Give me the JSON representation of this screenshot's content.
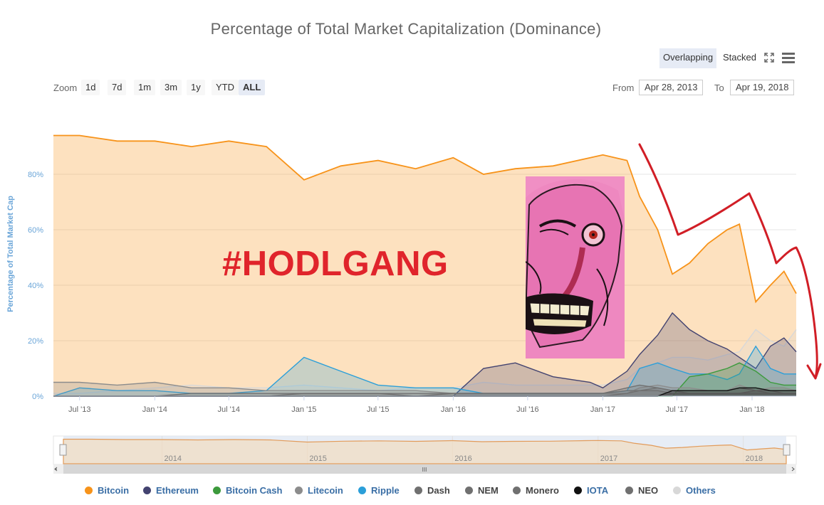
{
  "title": "Percentage of Total Market Capitalization (Dominance)",
  "controls": {
    "overlapping_label": "Overlapping",
    "stacked_label": "Stacked",
    "zoom_label": "Zoom",
    "zoom_options": [
      "1d",
      "7d",
      "1m",
      "3m",
      "1y",
      "YTD",
      "ALL"
    ],
    "zoom_active": "ALL",
    "from_label": "From",
    "from_value": "Apr 28, 2013",
    "to_label": "To",
    "to_value": "Apr 19, 2018"
  },
  "overlay": {
    "hashtag": "#HODLGANG"
  },
  "navigator": {
    "year_labels": [
      "2014",
      "2015",
      "2016",
      "2017",
      "2018"
    ],
    "scroll_handle": "III"
  },
  "colors": {
    "bitcoin": "#f7931a",
    "ethereum": "#434348",
    "bitcoin_cash": "#55a630",
    "litecoin": "#8c8c8c",
    "ripple": "#2b9fd9",
    "dash": "#6e6e6e",
    "iota": "#111111",
    "others": "#dddddd",
    "drawn_arrow": "#d11e26",
    "hashtag": "#e0242b",
    "axis_label": "#6aa5d8"
  },
  "chart_data": {
    "type": "area",
    "title": "Percentage of Total Market Capitalization (Dominance)",
    "ylabel": "Percentage of Total Market Cap",
    "ylim": [
      0,
      100
    ],
    "yticks": [
      "0%",
      "20%",
      "40%",
      "60%",
      "80%"
    ],
    "xticks": [
      "Jul '13",
      "Jan '14",
      "Jul '14",
      "Jan '15",
      "Jul '15",
      "Jan '16",
      "Jul '16",
      "Jan '17",
      "Jul '17",
      "Jan '18"
    ],
    "grid": true,
    "legend_position": "bottom",
    "x": [
      "2013-04-28",
      "2013-07-01",
      "2013-10-01",
      "2014-01-01",
      "2014-04-01",
      "2014-07-01",
      "2014-10-01",
      "2015-01-01",
      "2015-04-01",
      "2015-07-01",
      "2015-10-01",
      "2016-01-01",
      "2016-03-15",
      "2016-06-01",
      "2016-09-01",
      "2016-12-01",
      "2017-01-01",
      "2017-03-01",
      "2017-04-01",
      "2017-05-15",
      "2017-06-20",
      "2017-08-01",
      "2017-09-15",
      "2017-11-01",
      "2017-12-01",
      "2018-01-10",
      "2018-02-15",
      "2018-03-20",
      "2018-04-19"
    ],
    "series": [
      {
        "name": "Bitcoin",
        "values": [
          94,
          94,
          92,
          92,
          90,
          92,
          90,
          78,
          83,
          85,
          82,
          86,
          80,
          82,
          83,
          86,
          87,
          85,
          72,
          60,
          44,
          48,
          55,
          60,
          62,
          34,
          40,
          45,
          37
        ]
      },
      {
        "name": "Ethereum",
        "values": [
          0,
          0,
          0,
          0,
          0,
          0,
          0,
          0,
          0,
          0,
          0,
          0,
          10,
          12,
          7,
          5,
          3,
          9,
          15,
          22,
          30,
          24,
          20,
          17,
          14,
          10,
          18,
          21,
          16
        ]
      },
      {
        "name": "Bitcoin Cash",
        "values": [
          0,
          0,
          0,
          0,
          0,
          0,
          0,
          0,
          0,
          0,
          0,
          0,
          0,
          0,
          0,
          0,
          0,
          0,
          0,
          0,
          0,
          7,
          8,
          10,
          12,
          9,
          5,
          4,
          4
        ]
      },
      {
        "name": "Litecoin",
        "values": [
          5,
          5,
          4,
          5,
          3,
          3,
          2,
          2,
          2,
          2,
          2,
          1,
          1,
          1,
          1,
          1,
          1,
          1,
          3,
          4,
          3,
          3,
          2,
          2,
          4,
          2,
          3,
          3,
          2
        ]
      },
      {
        "name": "Ripple",
        "values": [
          0,
          3,
          2,
          2,
          1,
          1,
          2,
          14,
          9,
          4,
          3,
          3,
          1,
          1,
          1,
          1,
          1,
          2,
          10,
          12,
          10,
          8,
          8,
          6,
          8,
          18,
          10,
          8,
          8
        ]
      },
      {
        "name": "Dash",
        "values": [
          0,
          0,
          0,
          0,
          0,
          0,
          0,
          1,
          1,
          1,
          0,
          1,
          1,
          1,
          1,
          1,
          1,
          3,
          4,
          3,
          2,
          2,
          2,
          2,
          3,
          2,
          2,
          2,
          2
        ]
      },
      {
        "name": "NEM",
        "values": [
          0,
          0,
          0,
          0,
          0,
          0,
          0,
          0,
          0,
          0,
          0,
          0,
          0,
          0,
          0,
          0,
          0,
          1,
          2,
          3,
          2,
          1,
          1,
          1,
          1,
          2,
          1,
          1,
          1
        ]
      },
      {
        "name": "Monero",
        "values": [
          0,
          0,
          0,
          0,
          1,
          1,
          1,
          1,
          1,
          1,
          1,
          1,
          1,
          1,
          1,
          1,
          1,
          2,
          2,
          2,
          1,
          1,
          1,
          1,
          1,
          1,
          1,
          1,
          1
        ]
      },
      {
        "name": "IOTA",
        "values": [
          0,
          0,
          0,
          0,
          0,
          0,
          0,
          0,
          0,
          0,
          0,
          0,
          0,
          0,
          0,
          0,
          0,
          0,
          0,
          0,
          2,
          2,
          2,
          2,
          3,
          3,
          2,
          2,
          2
        ]
      },
      {
        "name": "NEO",
        "values": [
          0,
          0,
          0,
          0,
          0,
          0,
          0,
          0,
          0,
          0,
          0,
          0,
          0,
          0,
          0,
          0,
          0,
          0,
          0,
          0,
          1,
          1,
          1,
          1,
          1,
          2,
          2,
          1,
          1
        ]
      },
      {
        "name": "Others",
        "values": [
          1,
          1,
          2,
          3,
          4,
          3,
          3,
          4,
          3,
          2,
          3,
          3,
          5,
          4,
          4,
          4,
          4,
          6,
          10,
          12,
          14,
          14,
          13,
          15,
          16,
          24,
          20,
          18,
          24
        ]
      }
    ]
  },
  "legend": [
    {
      "label": "Bitcoin",
      "color": "#f7931a"
    },
    {
      "label": "Ethereum",
      "color": "#434370"
    },
    {
      "label": "Bitcoin Cash",
      "color": "#3c9a3c"
    },
    {
      "label": "Litecoin",
      "color": "#8c8c8c"
    },
    {
      "label": "Ripple",
      "color": "#2b9fd9"
    },
    {
      "label": "Dash",
      "color": "#707070"
    },
    {
      "label": "NEM",
      "color": "#707070"
    },
    {
      "label": "Monero",
      "color": "#707070"
    },
    {
      "label": "IOTA",
      "color": "#111111"
    },
    {
      "label": "NEO",
      "color": "#707070"
    },
    {
      "label": "Others",
      "color": "#d8d8d8"
    }
  ]
}
